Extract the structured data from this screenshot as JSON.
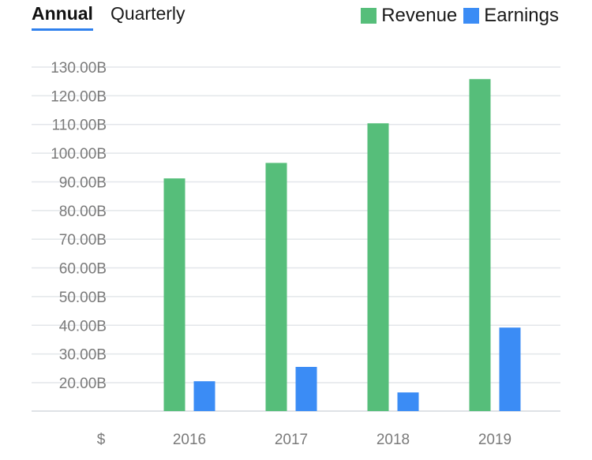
{
  "tabs": [
    {
      "label": "Annual",
      "active": true
    },
    {
      "label": "Quarterly",
      "active": false
    }
  ],
  "legend": [
    {
      "label": "Revenue",
      "color": "#56be7a"
    },
    {
      "label": "Earnings",
      "color": "#3b8cf5"
    }
  ],
  "currency_symbol": "$",
  "chart_data": {
    "type": "bar",
    "categories": [
      "2016",
      "2017",
      "2018",
      "2019"
    ],
    "series": [
      {
        "name": "Revenue",
        "values": [
          91.2,
          96.6,
          110.4,
          125.8
        ],
        "color": "#56be7a"
      },
      {
        "name": "Earnings",
        "values": [
          20.5,
          25.5,
          16.6,
          39.2
        ],
        "color": "#3b8cf5"
      }
    ],
    "yticks": [
      20,
      30,
      40,
      50,
      60,
      70,
      80,
      90,
      100,
      110,
      120,
      130
    ],
    "ytick_labels": [
      "20.00B",
      "30.00B",
      "40.00B",
      "50.00B",
      "60.00B",
      "70.00B",
      "80.00B",
      "90.00B",
      "100.00B",
      "110.00B",
      "120.00B",
      "130.00B"
    ],
    "ylim": [
      10,
      130
    ],
    "unit": "B",
    "grid": true,
    "legend_position": "top-right"
  }
}
